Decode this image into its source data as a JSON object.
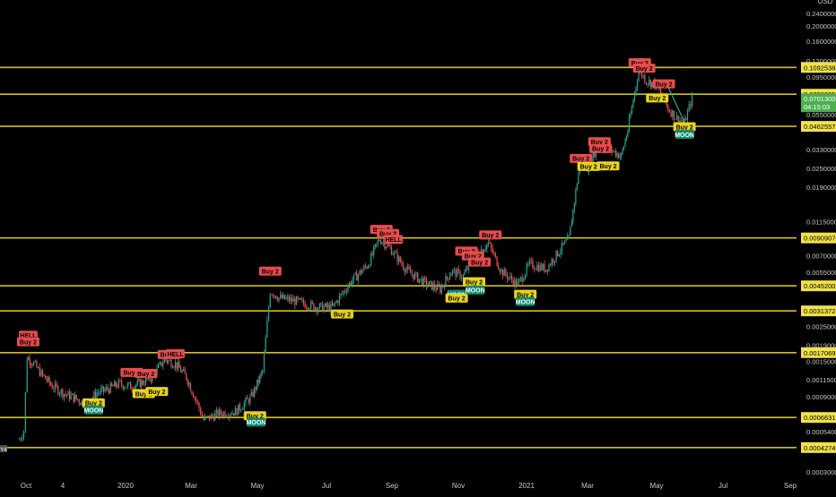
{
  "chart_data": {
    "type": "candlestick",
    "currency": "USD",
    "y_scale": "log",
    "ylim": [
      0.00027,
      0.27
    ],
    "price_ticks": [
      "0.24000000",
      "0.20000000",
      "0.16000000",
      "0.12000000",
      "0.09500000",
      "0.06500000",
      "0.05500000",
      "0.03300000",
      "0.02500000",
      "0.01900000",
      "0.01150000",
      "0.00700000",
      "0.00550000",
      "0.00250000",
      "0.00190000",
      "0.00150000",
      "0.00115000",
      "0.00090000",
      "0.00054000",
      "0.00030000"
    ],
    "x_ticks": [
      "Oct",
      "4",
      "2020",
      "Mar",
      "May",
      "Jul",
      "Sep",
      "Nov",
      "2021",
      "Mar",
      "May",
      "Jul",
      "Sep"
    ],
    "support_levels": [
      "0.10925388",
      "0.07392055",
      "0.04625571",
      "0.00909070",
      "0.00452005",
      "0.00313721",
      "0.00170699",
      "0.00066316",
      "0.00042746"
    ],
    "last_price": "0.07013000",
    "countdown": "04:15:03",
    "start_label": "Y4",
    "colors": {
      "background": "#000000",
      "grid_level": "#d4c017",
      "up": "#26a69a",
      "down": "#ef5350",
      "last_price_bg": "#4caf50"
    },
    "series": [
      {
        "date": "2019-09-25",
        "close": 0.00048
      },
      {
        "date": "2019-09-29",
        "close": 0.00055
      },
      {
        "date": "2019-10-02",
        "close": 0.0016
      },
      {
        "date": "2019-10-08",
        "close": 0.00145
      },
      {
        "date": "2019-10-15",
        "close": 0.00125
      },
      {
        "date": "2019-10-25",
        "close": 0.00105
      },
      {
        "date": "2019-11-05",
        "close": 0.00094
      },
      {
        "date": "2019-11-15",
        "close": 0.00088
      },
      {
        "date": "2019-11-25",
        "close": 0.0008
      },
      {
        "date": "2019-12-05",
        "close": 0.00095
      },
      {
        "date": "2019-12-15",
        "close": 0.001
      },
      {
        "date": "2019-12-25",
        "close": 0.00108
      },
      {
        "date": "2020-01-05",
        "close": 0.00104
      },
      {
        "date": "2020-01-15",
        "close": 0.0011
      },
      {
        "date": "2020-01-25",
        "close": 0.0012
      },
      {
        "date": "2020-02-05",
        "close": 0.00155
      },
      {
        "date": "2020-02-15",
        "close": 0.00145
      },
      {
        "date": "2020-02-25",
        "close": 0.0012
      },
      {
        "date": "2020-03-05",
        "close": 0.00085
      },
      {
        "date": "2020-03-12",
        "close": 0.00064
      },
      {
        "date": "2020-03-25",
        "close": 0.0007
      },
      {
        "date": "2020-04-10",
        "close": 0.00072
      },
      {
        "date": "2020-04-25",
        "close": 0.0009
      },
      {
        "date": "2020-05-05",
        "close": 0.0013
      },
      {
        "date": "2020-05-12",
        "close": 0.0042
      },
      {
        "date": "2020-05-20",
        "close": 0.0038
      },
      {
        "date": "2020-06-05",
        "close": 0.0036
      },
      {
        "date": "2020-06-25",
        "close": 0.0033
      },
      {
        "date": "2020-07-08",
        "close": 0.0033
      },
      {
        "date": "2020-07-25",
        "close": 0.0048
      },
      {
        "date": "2020-08-10",
        "close": 0.0062
      },
      {
        "date": "2020-08-20",
        "close": 0.009
      },
      {
        "date": "2020-08-30",
        "close": 0.0078
      },
      {
        "date": "2020-09-15",
        "close": 0.0056
      },
      {
        "date": "2020-10-01",
        "close": 0.0047
      },
      {
        "date": "2020-10-15",
        "close": 0.0043
      },
      {
        "date": "2020-10-25",
        "close": 0.0056
      },
      {
        "date": "2020-11-05",
        "close": 0.0052
      },
      {
        "date": "2020-11-15",
        "close": 0.007
      },
      {
        "date": "2020-11-28",
        "close": 0.0084
      },
      {
        "date": "2020-12-10",
        "close": 0.0056
      },
      {
        "date": "2020-12-25",
        "close": 0.0046
      },
      {
        "date": "2021-01-05",
        "close": 0.0062
      },
      {
        "date": "2021-01-20",
        "close": 0.0058
      },
      {
        "date": "2021-02-01",
        "close": 0.0075
      },
      {
        "date": "2021-02-10",
        "close": 0.009
      },
      {
        "date": "2021-02-20",
        "close": 0.027
      },
      {
        "date": "2021-02-27",
        "close": 0.025
      },
      {
        "date": "2021-03-08",
        "close": 0.035
      },
      {
        "date": "2021-03-20",
        "close": 0.033
      },
      {
        "date": "2021-03-30",
        "close": 0.03
      },
      {
        "date": "2021-04-05",
        "close": 0.044
      },
      {
        "date": "2021-04-15",
        "close": 0.105
      },
      {
        "date": "2021-04-22",
        "close": 0.09
      },
      {
        "date": "2021-05-01",
        "close": 0.085
      },
      {
        "date": "2021-05-12",
        "close": 0.06
      },
      {
        "date": "2021-05-20",
        "close": 0.052
      },
      {
        "date": "2021-05-27",
        "close": 0.049
      },
      {
        "date": "2021-06-03",
        "close": 0.07013
      }
    ],
    "signals": [
      {
        "date": "2019-10-03",
        "price": 0.0022,
        "text": "HELL",
        "type": "sell"
      },
      {
        "date": "2019-10-03",
        "price": 0.002,
        "text": "Buy 2",
        "type": "sell"
      },
      {
        "date": "2019-12-02",
        "price": 0.00082,
        "text": "Buy 2",
        "type": "buy"
      },
      {
        "date": "2019-12-02",
        "price": 0.00074,
        "text": "MOON",
        "type": "moon"
      },
      {
        "date": "2020-01-06",
        "price": 0.00128,
        "text": "Buy 2",
        "type": "sell"
      },
      {
        "date": "2020-01-17",
        "price": 0.00094,
        "text": "Buy 2",
        "type": "buy"
      },
      {
        "date": "2020-01-19",
        "price": 0.00126,
        "text": "Buy 2",
        "type": "sell"
      },
      {
        "date": "2020-01-29",
        "price": 0.00097,
        "text": "Buy 2",
        "type": "buy"
      },
      {
        "date": "2020-02-09",
        "price": 0.00166,
        "text": "Buy 2",
        "type": "sell"
      },
      {
        "date": "2020-02-15",
        "price": 0.00168,
        "text": "HELL",
        "type": "sell"
      },
      {
        "date": "2020-04-28",
        "price": 0.00068,
        "text": "Buy 2",
        "type": "buy"
      },
      {
        "date": "2020-04-29",
        "price": 0.00062,
        "text": "MOON",
        "type": "moon"
      },
      {
        "date": "2020-05-12",
        "price": 0.0056,
        "text": "Buy 2",
        "type": "sell"
      },
      {
        "date": "2020-07-17",
        "price": 0.003,
        "text": "Buy 2",
        "type": "buy"
      },
      {
        "date": "2020-08-22",
        "price": 0.0103,
        "text": "Buy 2",
        "type": "sell"
      },
      {
        "date": "2020-08-28",
        "price": 0.0097,
        "text": "Buy 2",
        "type": "sell"
      },
      {
        "date": "2020-09-02",
        "price": 0.0089,
        "text": "HELL",
        "type": "sell"
      },
      {
        "date": "2020-10-30",
        "price": 0.004,
        "text": "MOON",
        "type": "moon"
      },
      {
        "date": "2020-10-30",
        "price": 0.00378,
        "text": "Buy 2",
        "type": "buy"
      },
      {
        "date": "2020-11-08",
        "price": 0.0075,
        "text": "Buy 2",
        "type": "sell"
      },
      {
        "date": "2020-11-14",
        "price": 0.007,
        "text": "Buy 2",
        "type": "sell"
      },
      {
        "date": "2020-11-15",
        "price": 0.0048,
        "text": "Buy 2",
        "type": "buy"
      },
      {
        "date": "2020-11-16",
        "price": 0.00425,
        "text": "MOON",
        "type": "moon"
      },
      {
        "date": "2020-11-20",
        "price": 0.0064,
        "text": "Buy 2",
        "type": "sell"
      },
      {
        "date": "2020-11-30",
        "price": 0.0095,
        "text": "Buy 2",
        "type": "sell"
      },
      {
        "date": "2021-01-01",
        "price": 0.004,
        "text": "Buy 2",
        "type": "buy"
      },
      {
        "date": "2021-01-01",
        "price": 0.0036,
        "text": "MOON",
        "type": "moon"
      },
      {
        "date": "2021-02-21",
        "price": 0.029,
        "text": "Buy 2",
        "type": "sell"
      },
      {
        "date": "2021-02-28",
        "price": 0.0258,
        "text": "Buy 2",
        "type": "buy"
      },
      {
        "date": "2021-03-10",
        "price": 0.037,
        "text": "Buy 2",
        "type": "sell"
      },
      {
        "date": "2021-03-11",
        "price": 0.0335,
        "text": "Buy 2",
        "type": "sell"
      },
      {
        "date": "2021-03-18",
        "price": 0.026,
        "text": "Buy 2",
        "type": "buy"
      },
      {
        "date": "2021-04-16",
        "price": 0.117,
        "text": "Buy 2",
        "type": "sell"
      },
      {
        "date": "2021-04-20",
        "price": 0.108,
        "text": "Buy 2",
        "type": "sell"
      },
      {
        "date": "2021-05-02",
        "price": 0.07,
        "text": "Buy 2",
        "type": "buy"
      },
      {
        "date": "2021-05-08",
        "price": 0.086,
        "text": "Buy 2",
        "type": "sell"
      },
      {
        "date": "2021-05-27",
        "price": 0.046,
        "text": "Buy 2",
        "type": "buy"
      },
      {
        "date": "2021-05-27",
        "price": 0.0412,
        "text": "MOON",
        "type": "moon"
      }
    ]
  }
}
